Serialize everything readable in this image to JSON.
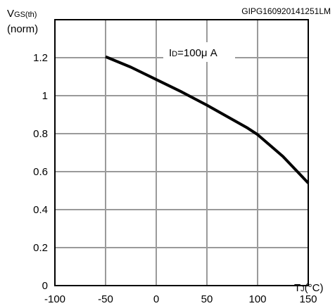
{
  "figure_id": "GIPG160920141251LM",
  "chart_data": {
    "type": "line",
    "ylabel": {
      "main": "V",
      "sub": "GS(th)",
      "unit": "(norm)"
    },
    "xlabel": {
      "main": "T",
      "sub": "J",
      "unit": "(°C)"
    },
    "annotation": {
      "main": "I",
      "sub": "D",
      "rest": "=100μ A"
    },
    "xlim": [
      -100,
      150
    ],
    "ylim": [
      0,
      1.4
    ],
    "x_ticks": [
      -100,
      -50,
      0,
      50,
      100,
      150
    ],
    "x_tick_labels": [
      "-100",
      "-50",
      "0",
      "50",
      "100",
      "150"
    ],
    "y_ticks": [
      0,
      0.2,
      0.4,
      0.6,
      0.8,
      1,
      1.2
    ],
    "y_tick_labels": [
      "0",
      "0.2",
      "0.4",
      "0.6",
      "0.8",
      "1",
      "1.2"
    ],
    "grid": true,
    "series": [
      {
        "x": [
          -50,
          -25,
          0,
          25,
          50,
          75,
          90,
          100,
          125,
          150
        ],
        "y": [
          1.205,
          1.15,
          1.085,
          1.02,
          0.95,
          0.875,
          0.83,
          0.795,
          0.68,
          0.54
        ]
      }
    ]
  }
}
